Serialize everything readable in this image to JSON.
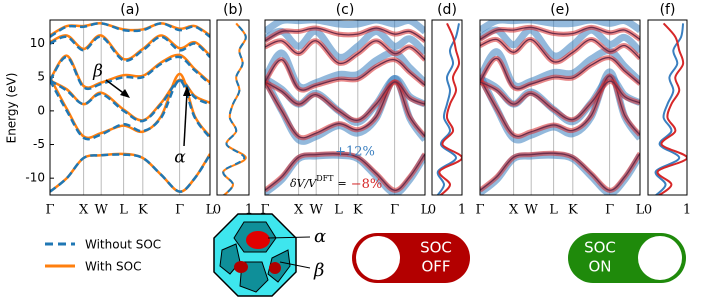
{
  "chart_data": [
    {
      "type": "bands",
      "title": "(a)",
      "ylabel": "Energy (eV)",
      "ylim": [
        -12.5,
        13.5
      ],
      "yticks": [
        -10,
        -5,
        0,
        5,
        10
      ],
      "x": [
        0,
        0.105,
        0.21,
        0.32,
        0.46,
        0.58,
        0.695,
        0.81,
        0.905,
        1
      ],
      "xlim": [
        0,
        1
      ],
      "xticks": [
        {
          "value": 0,
          "label": "Γ"
        },
        {
          "value": 0.21,
          "label": "X"
        },
        {
          "value": 0.32,
          "label": "W"
        },
        {
          "value": 0.46,
          "label": "L"
        },
        {
          "value": 0.58,
          "label": "K"
        },
        {
          "value": 0.81,
          "label": "Γ"
        },
        {
          "value": 1,
          "label": "L"
        }
      ],
      "series": [
        {
          "name": "With SOC",
          "color": "#ff7f0e",
          "bands": [
            [
              -12,
              -10,
              -7,
              -6.6,
              -6.4,
              -7,
              -9.5,
              -12,
              -10,
              -6.4
            ],
            [
              5,
              0.3,
              -3.8,
              -3.3,
              -2.2,
              -3.1,
              -0.8,
              5.5,
              -0.8,
              -3.8
            ],
            [
              4.5,
              3.2,
              1,
              2.7,
              0.2,
              -1.4,
              1.2,
              4.6,
              2.2,
              1.2
            ],
            [
              4.6,
              8.2,
              3.7,
              4.2,
              5.3,
              5.2,
              7.2,
              8.3,
              6.2,
              4.2
            ],
            [
              10.2,
              11.2,
              9.2,
              11.2,
              7.7,
              9.2,
              11.2,
              9.3,
              10.2,
              8.2
            ],
            [
              11.2,
              12.6,
              12.6,
              13,
              12.1,
              12.1,
              13,
              12.2,
              12.6,
              11.2
            ]
          ]
        },
        {
          "name": "Without SOC",
          "color": "#1f77b4",
          "dash": true,
          "bands": [
            [
              -12,
              -10,
              -7,
              -6.6,
              -6.5,
              -7,
              -9.5,
              -12,
              -10,
              -6.5
            ],
            [
              4.5,
              0,
              -4,
              -3.5,
              -2,
              -3,
              -1,
              4.5,
              -1,
              -4
            ],
            [
              4.5,
              3,
              1,
              2.5,
              0,
              -1.5,
              1,
              4.5,
              2,
              1
            ],
            [
              4.5,
              8,
              3.5,
              4,
              5,
              5,
              7,
              8,
              6,
              4
            ],
            [
              10,
              11,
              9,
              11,
              7.5,
              9,
              11,
              9,
              10,
              8
            ],
            [
              11,
              12.5,
              12.5,
              13,
              12,
              12,
              13,
              12,
              12.5,
              11
            ]
          ]
        }
      ],
      "annotations": [
        "β",
        "α"
      ]
    },
    {
      "type": "dos",
      "title": "(b)",
      "ylim": [
        -12.5,
        13.5
      ],
      "xlim": [
        0,
        1
      ],
      "xticks": [
        0,
        1
      ],
      "energies": [
        -13,
        -11,
        -9,
        -7,
        -5,
        -3,
        -1,
        1,
        3,
        5,
        7,
        9,
        11,
        13
      ],
      "series": [
        {
          "color": "#ff7f0e",
          "values": [
            0.1,
            0.5,
            0.2,
            0.9,
            0.3,
            0.6,
            0.4,
            0.5,
            0.7,
            0.6,
            0.8,
            0.7,
            0.9,
            0.6
          ]
        },
        {
          "color": "#1f77b4",
          "dash": true,
          "values": [
            0.1,
            0.5,
            0.2,
            0.85,
            0.3,
            0.6,
            0.4,
            0.5,
            0.7,
            0.6,
            0.8,
            0.7,
            0.9,
            0.6
          ]
        }
      ]
    },
    {
      "type": "bands",
      "title": "(c)",
      "shaded": true,
      "ylim": [
        -12.5,
        13.5
      ],
      "x": [
        0,
        0.105,
        0.21,
        0.32,
        0.46,
        0.58,
        0.695,
        0.81,
        0.905,
        1
      ],
      "xlim": [
        0,
        1
      ],
      "xticks": [
        {
          "value": 0,
          "label": "Γ"
        },
        {
          "value": 0.21,
          "label": "X"
        },
        {
          "value": 0.32,
          "label": "W"
        },
        {
          "value": 0.46,
          "label": "L"
        },
        {
          "value": 0.58,
          "label": "K"
        },
        {
          "value": 0.81,
          "label": "Γ"
        },
        {
          "value": 1,
          "label": "L"
        }
      ],
      "series": [
        {
          "color": "#3a7fc0",
          "bands": [
            [
              -12.2,
              -10.2,
              -7.1,
              -6.7,
              -6.6,
              -7.1,
              -9.7,
              -12.2,
              -10.2,
              -6.6
            ],
            [
              4.8,
              0,
              -4.3,
              -3.8,
              -2.2,
              -3.3,
              -1.1,
              4.8,
              -1.1,
              -4.3
            ],
            [
              4.8,
              3.2,
              1,
              2.6,
              0,
              -1.7,
              1,
              4.8,
              2.1,
              1
            ],
            [
              4.8,
              8.6,
              3.7,
              4.2,
              5.4,
              5.4,
              7.5,
              8.6,
              6.4,
              4.2
            ],
            [
              10.7,
              11.8,
              9.6,
              11.8,
              8,
              9.6,
              11.8,
              9.6,
              10.7,
              8.6
            ],
            [
              11.8,
              13.4,
              13.4,
              13.5,
              12.9,
              12.9,
              13.5,
              12.9,
              13.4,
              11.8
            ]
          ]
        },
        {
          "color": "#d62728",
          "bands": [
            [
              -11.8,
              -9.8,
              -6.9,
              -6.5,
              -6.4,
              -6.9,
              -9.3,
              -11.8,
              -9.8,
              -6.4
            ],
            [
              4.3,
              0,
              -3.8,
              -3.3,
              -1.9,
              -2.8,
              -0.9,
              4.3,
              -0.9,
              -3.8
            ],
            [
              4.3,
              2.9,
              1,
              2.4,
              0,
              -1.4,
              1,
              4.3,
              1.9,
              1
            ],
            [
              4.3,
              7.6,
              3.3,
              3.8,
              4.7,
              4.7,
              6.6,
              7.6,
              5.7,
              3.8
            ],
            [
              9.5,
              10.4,
              8.5,
              10.4,
              7.1,
              8.5,
              10.4,
              8.5,
              9.5,
              7.6
            ],
            [
              10.4,
              11.8,
              11.8,
              12.3,
              11.4,
              11.4,
              12.3,
              11.4,
              11.8,
              10.4
            ]
          ]
        }
      ],
      "annotations": [
        "+12%"
      ],
      "strain_label": {
        "text": "δV/V",
        "sup": "DFT",
        "eq": "=",
        "value": "−8%"
      }
    },
    {
      "type": "dos",
      "title": "(d)",
      "ylim": [
        -12.5,
        13.5
      ],
      "xlim": [
        0,
        1
      ],
      "xticks": [
        0,
        1
      ],
      "energies": [
        -13,
        -11,
        -9,
        -7,
        -5,
        -3,
        -1,
        1,
        3,
        5,
        7,
        9,
        11,
        13
      ],
      "series": [
        {
          "color": "#3a7fc0",
          "values": [
            0.1,
            0.4,
            0.2,
            0.8,
            0.3,
            0.6,
            0.4,
            0.5,
            0.6,
            0.5,
            0.7,
            0.6,
            0.8,
            0.9
          ]
        },
        {
          "color": "#d62728",
          "values": [
            0.15,
            0.6,
            0.25,
            1,
            0.35,
            0.7,
            0.5,
            0.6,
            0.8,
            0.7,
            0.9,
            0.8,
            0.7,
            0.5
          ]
        }
      ]
    },
    {
      "type": "bands",
      "title": "(e)",
      "shaded": true,
      "ylim": [
        -12.5,
        13.5
      ],
      "x": [
        0,
        0.105,
        0.21,
        0.32,
        0.46,
        0.58,
        0.695,
        0.81,
        0.905,
        1
      ],
      "xlim": [
        0,
        1
      ],
      "xticks": [
        {
          "value": 0,
          "label": "Γ"
        },
        {
          "value": 0.21,
          "label": "X"
        },
        {
          "value": 0.32,
          "label": "W"
        },
        {
          "value": 0.46,
          "label": "L"
        },
        {
          "value": 0.58,
          "label": "K"
        },
        {
          "value": 0.81,
          "label": "Γ"
        },
        {
          "value": 1,
          "label": "L"
        }
      ],
      "series": [
        {
          "color": "#3a7fc0",
          "bands": [
            [
              -12.2,
              -10.2,
              -7.1,
              -6.7,
              -6.6,
              -7.1,
              -9.7,
              -12.2,
              -10.2,
              -6.6
            ],
            [
              5.3,
              0.3,
              -4.1,
              -3.6,
              -2.4,
              -3.4,
              -0.9,
              5.8,
              -0.9,
              -4.1
            ],
            [
              4.8,
              3.4,
              1,
              2.8,
              0.2,
              -1.6,
              1.2,
              4.9,
              2.3,
              1.2
            ],
            [
              4.9,
              8.8,
              3.9,
              4.4,
              5.7,
              5.6,
              7.7,
              8.9,
              6.6,
              4.4
            ],
            [
              10.9,
              12,
              9.8,
              12,
              8.2,
              9.8,
              12,
              9.9,
              10.9,
              8.8
            ],
            [
              12,
              13.4,
              13.4,
              13.5,
              13,
              13,
              13.5,
              13,
              13.4,
              12
            ]
          ]
        },
        {
          "color": "#d62728",
          "bands": [
            [
              -11.8,
              -9.8,
              -6.9,
              -6.5,
              -6.3,
              -6.9,
              -9.3,
              -11.8,
              -9.8,
              -6.3
            ],
            [
              4.8,
              0.3,
              -3.6,
              -3.1,
              -2.1,
              -2.9,
              -0.7,
              5.2,
              -0.7,
              -3.6
            ],
            [
              4.3,
              3.1,
              1,
              2.6,
              0.2,
              -1.3,
              1.2,
              4.4,
              2.1,
              1.2
            ],
            [
              4.4,
              7.8,
              3.5,
              4,
              5,
              4.9,
              6.8,
              7.9,
              5.9,
              4
            ],
            [
              9.7,
              10.6,
              8.7,
              10.6,
              7.3,
              8.7,
              10.6,
              8.8,
              9.7,
              7.8
            ],
            [
              10.6,
              12,
              12,
              12.4,
              11.5,
              11.5,
              12.4,
              11.6,
              12,
              10.6
            ]
          ]
        }
      ]
    },
    {
      "type": "dos",
      "title": "(f)",
      "ylim": [
        -12.5,
        13.5
      ],
      "xlim": [
        0,
        1
      ],
      "xticks": [
        0,
        1
      ],
      "energies": [
        -13,
        -11,
        -9,
        -7,
        -5,
        -3,
        -1,
        1,
        3,
        5,
        7,
        9,
        11,
        13
      ],
      "series": [
        {
          "color": "#3a7fc0",
          "values": [
            0.1,
            0.45,
            0.2,
            0.8,
            0.3,
            0.6,
            0.4,
            0.5,
            0.65,
            0.55,
            0.75,
            0.65,
            0.85,
            0.9
          ]
        },
        {
          "color": "#d62728",
          "values": [
            0.15,
            0.6,
            0.25,
            1,
            0.35,
            0.7,
            0.5,
            0.6,
            0.8,
            0.7,
            0.9,
            0.8,
            0.7,
            0.4
          ]
        }
      ]
    }
  ],
  "diagram": {
    "alpha": "α",
    "beta": "β"
  },
  "toggles": [
    {
      "lines": [
        "SOC",
        "OFF"
      ],
      "color": "#b30000"
    },
    {
      "lines": [
        "SOC",
        "ON"
      ],
      "color": "#1f8a0b"
    }
  ]
}
